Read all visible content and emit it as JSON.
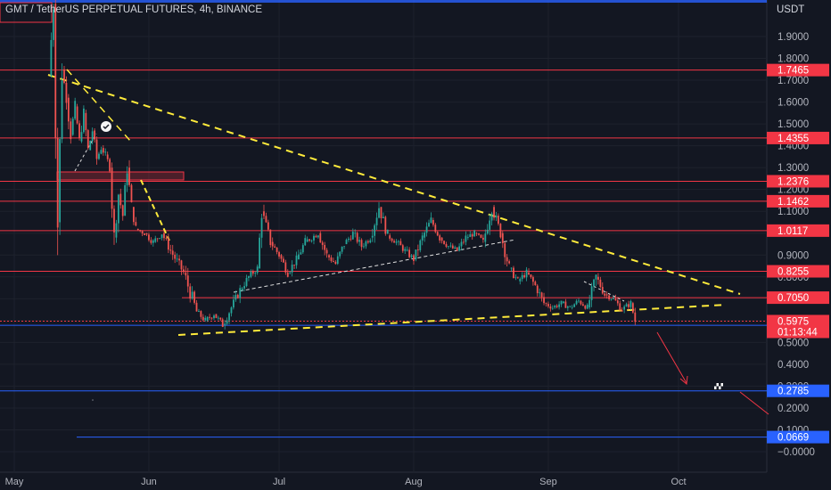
{
  "header": {
    "symbol_title": "GMT / TetherUS PERPETUAL FUTURES, 4h, BINANCE",
    "currency": "USDT"
  },
  "colors": {
    "background": "#131722",
    "grid": "#1e222d",
    "up": "#26a69a",
    "down": "#ef5350",
    "resistance_line": "#f23645",
    "support_line": "#2962ff",
    "trend_yellow": "#ffeb3b",
    "trend_white": "#e0e0e0",
    "forecast_arrow": "#f23645"
  },
  "chart_data": {
    "type": "candlestick",
    "y_axis": {
      "range": [
        -0.0,
        2.0
      ],
      "ticks": [
        "1.9000",
        "1.8000",
        "1.7000",
        "1.6000",
        "1.5000",
        "1.4000",
        "1.3000",
        "1.2000",
        "1.1000",
        "1.0000",
        "0.9000",
        "0.8000",
        "0.7000",
        "0.6000",
        "0.5000",
        "0.4000",
        "0.3000",
        "0.2000",
        "0.1000",
        "−0.0000"
      ],
      "tick_values": [
        1.9,
        1.8,
        1.7,
        1.6,
        1.5,
        1.4,
        1.3,
        1.2,
        1.1,
        1.0,
        0.9,
        0.8,
        0.7,
        0.6,
        0.5,
        0.4,
        0.3,
        0.2,
        0.1,
        0.0
      ]
    },
    "x_axis": {
      "ticks": [
        "May",
        "Jun",
        "Jul",
        "Aug",
        "Sep",
        "Oct"
      ]
    },
    "current_price": {
      "value": "0.5975",
      "countdown": "01:13:44"
    },
    "resistance_levels": [
      {
        "value": 1.7465,
        "label": "1.7465"
      },
      {
        "value": 1.4355,
        "label": "1.4355"
      },
      {
        "value": 1.2376,
        "label": "1.2376"
      },
      {
        "value": 1.1462,
        "label": "1.1462"
      },
      {
        "value": 1.0117,
        "label": "1.0117"
      },
      {
        "value": 0.8255,
        "label": "0.8255"
      },
      {
        "value": 0.705,
        "label": "0.7050"
      }
    ],
    "support_levels": [
      {
        "value": 0.5785,
        "label": "0.5785"
      },
      {
        "value": 0.2785,
        "label": "0.2785"
      },
      {
        "value": 0.0669,
        "label": "0.0669"
      }
    ],
    "price_path": [
      {
        "d": "2022-05-09",
        "p": 1.72
      },
      {
        "d": "2022-05-10",
        "p": 2.05
      },
      {
        "d": "2022-05-11",
        "p": 1.05
      },
      {
        "d": "2022-05-12",
        "p": 1.75
      },
      {
        "d": "2022-05-13",
        "p": 1.62
      },
      {
        "d": "2022-05-14",
        "p": 1.45
      },
      {
        "d": "2022-05-15",
        "p": 1.58
      },
      {
        "d": "2022-05-16",
        "p": 1.42
      },
      {
        "d": "2022-05-17",
        "p": 1.55
      },
      {
        "d": "2022-05-18",
        "p": 1.38
      },
      {
        "d": "2022-05-19",
        "p": 1.47
      },
      {
        "d": "2022-05-20",
        "p": 1.34
      },
      {
        "d": "2022-05-21",
        "p": 1.39
      },
      {
        "d": "2022-05-22",
        "p": 1.36
      },
      {
        "d": "2022-05-23",
        "p": 1.3
      },
      {
        "d": "2022-05-24",
        "p": 0.98
      },
      {
        "d": "2022-05-25",
        "p": 1.18
      },
      {
        "d": "2022-05-26",
        "p": 1.08
      },
      {
        "d": "2022-05-27",
        "p": 1.3
      },
      {
        "d": "2022-05-28",
        "p": 1.12
      },
      {
        "d": "2022-05-29",
        "p": 1.02
      },
      {
        "d": "2022-05-31",
        "p": 1.0
      },
      {
        "d": "2022-06-02",
        "p": 0.96
      },
      {
        "d": "2022-06-04",
        "p": 1.0
      },
      {
        "d": "2022-06-06",
        "p": 0.92
      },
      {
        "d": "2022-06-09",
        "p": 0.82
      },
      {
        "d": "2022-06-12",
        "p": 0.64
      },
      {
        "d": "2022-06-14",
        "p": 0.6
      },
      {
        "d": "2022-06-16",
        "p": 0.63
      },
      {
        "d": "2022-06-18",
        "p": 0.58
      },
      {
        "d": "2022-06-20",
        "p": 0.66
      },
      {
        "d": "2022-06-22",
        "p": 0.74
      },
      {
        "d": "2022-06-24",
        "p": 0.8
      },
      {
        "d": "2022-06-26",
        "p": 0.84
      },
      {
        "d": "2022-06-27",
        "p": 1.1
      },
      {
        "d": "2022-06-29",
        "p": 0.96
      },
      {
        "d": "2022-07-01",
        "p": 0.9
      },
      {
        "d": "2022-07-03",
        "p": 0.82
      },
      {
        "d": "2022-07-05",
        "p": 0.88
      },
      {
        "d": "2022-07-07",
        "p": 0.96
      },
      {
        "d": "2022-07-10",
        "p": 1.0
      },
      {
        "d": "2022-07-12",
        "p": 0.9
      },
      {
        "d": "2022-07-14",
        "p": 0.86
      },
      {
        "d": "2022-07-16",
        "p": 0.95
      },
      {
        "d": "2022-07-18",
        "p": 1.0
      },
      {
        "d": "2022-07-20",
        "p": 0.94
      },
      {
        "d": "2022-07-22",
        "p": 0.98
      },
      {
        "d": "2022-07-24",
        "p": 1.12
      },
      {
        "d": "2022-07-26",
        "p": 0.99
      },
      {
        "d": "2022-07-28",
        "p": 0.96
      },
      {
        "d": "2022-07-30",
        "p": 0.92
      },
      {
        "d": "2022-08-01",
        "p": 0.88
      },
      {
        "d": "2022-08-03",
        "p": 0.98
      },
      {
        "d": "2022-08-05",
        "p": 1.06
      },
      {
        "d": "2022-08-07",
        "p": 0.98
      },
      {
        "d": "2022-08-09",
        "p": 0.94
      },
      {
        "d": "2022-08-11",
        "p": 0.92
      },
      {
        "d": "2022-08-13",
        "p": 0.98
      },
      {
        "d": "2022-08-15",
        "p": 1.0
      },
      {
        "d": "2022-08-17",
        "p": 0.96
      },
      {
        "d": "2022-08-19",
        "p": 1.12
      },
      {
        "d": "2022-08-21",
        "p": 1.0
      },
      {
        "d": "2022-08-23",
        "p": 0.84
      },
      {
        "d": "2022-08-25",
        "p": 0.78
      },
      {
        "d": "2022-08-27",
        "p": 0.82
      },
      {
        "d": "2022-08-29",
        "p": 0.76
      },
      {
        "d": "2022-08-31",
        "p": 0.68
      },
      {
        "d": "2022-09-02",
        "p": 0.66
      },
      {
        "d": "2022-09-04",
        "p": 0.68
      },
      {
        "d": "2022-09-06",
        "p": 0.66
      },
      {
        "d": "2022-09-08",
        "p": 0.69
      },
      {
        "d": "2022-09-10",
        "p": 0.66
      },
      {
        "d": "2022-09-12",
        "p": 0.8
      },
      {
        "d": "2022-09-14",
        "p": 0.72
      },
      {
        "d": "2022-09-16",
        "p": 0.7
      },
      {
        "d": "2022-09-18",
        "p": 0.65
      },
      {
        "d": "2022-09-20",
        "p": 0.68
      },
      {
        "d": "2022-09-21",
        "p": 0.5975
      }
    ]
  }
}
